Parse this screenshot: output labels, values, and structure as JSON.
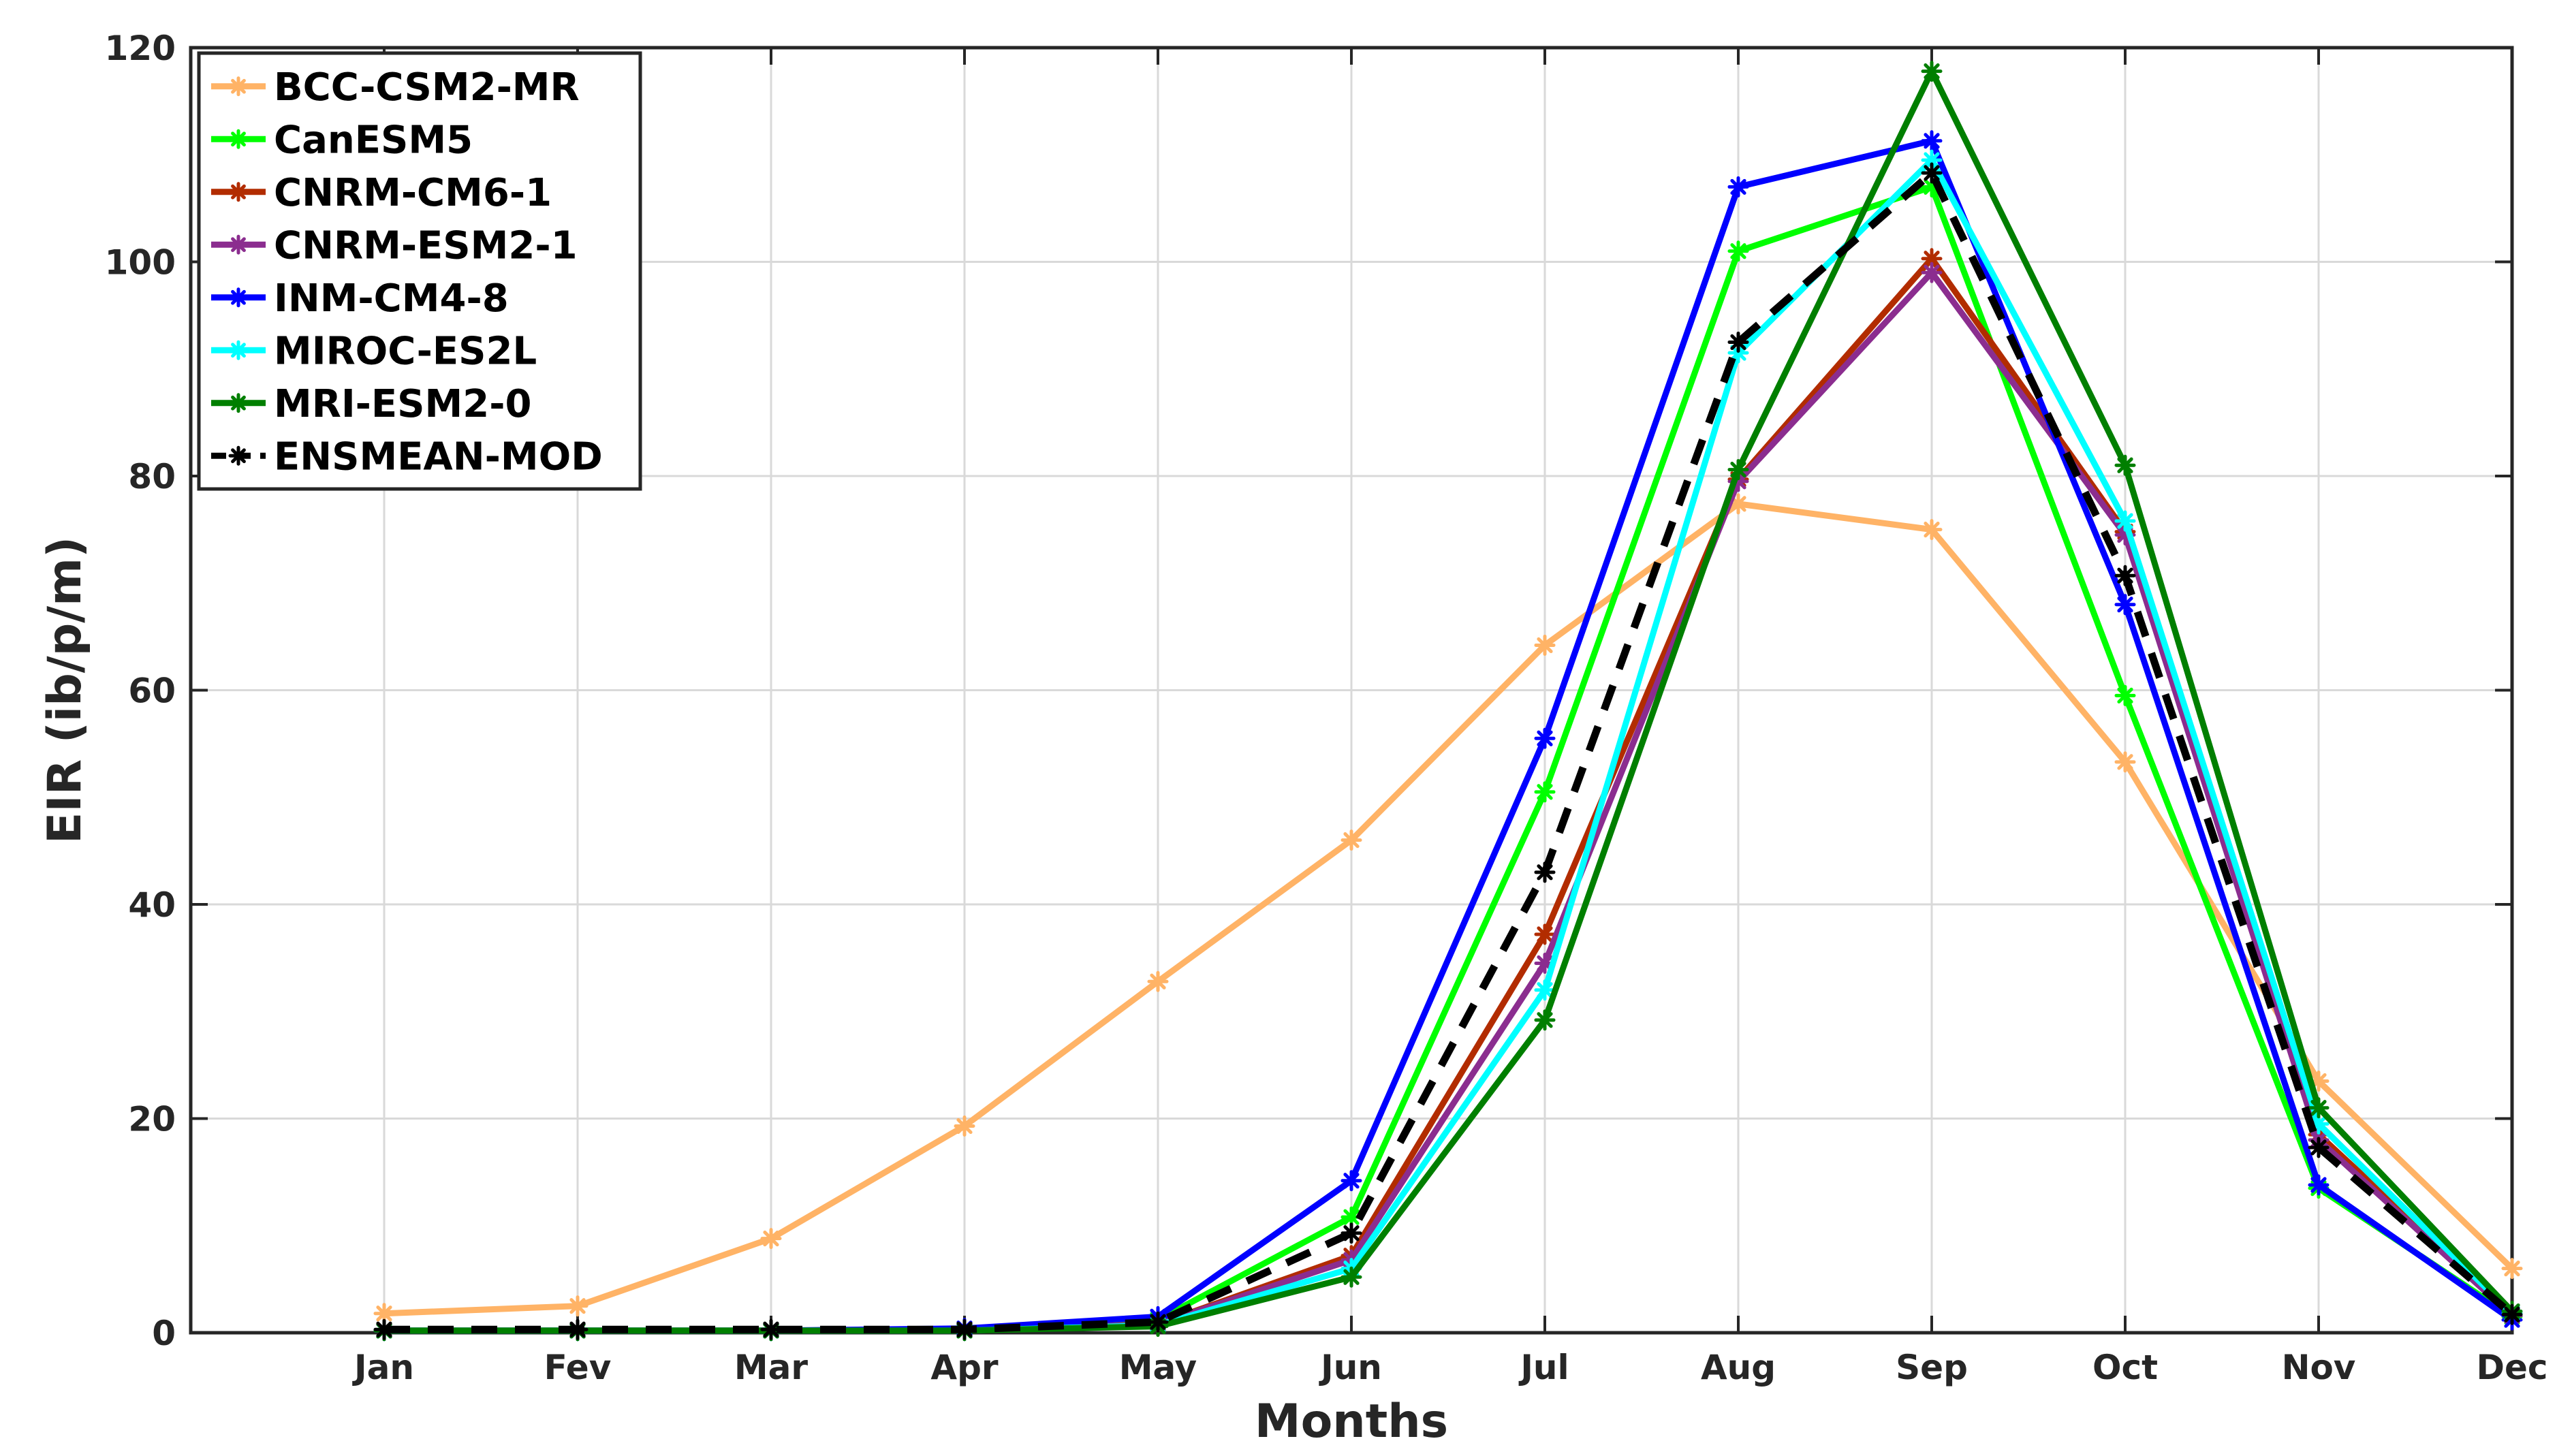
{
  "chart_data": {
    "type": "line",
    "title": "",
    "xlabel": "Months",
    "ylabel": "EIR (ib/p/m)",
    "categories": [
      "Jan",
      "Fev",
      "Mar",
      "Apr",
      "May",
      "Jun",
      "Jul",
      "Aug",
      "Sep",
      "Oct",
      "Nov",
      "Dec"
    ],
    "ylim": [
      0,
      120
    ],
    "yticks": [
      0,
      20,
      40,
      60,
      80,
      100,
      120
    ],
    "xlim_months": [
      0,
      12
    ],
    "grid": true,
    "legend_position": "top-left",
    "series": [
      {
        "name": "BCC-CSM2-MR",
        "color": "#FFB366",
        "dashed": false,
        "values": [
          1.8,
          2.5,
          8.8,
          19.3,
          32.8,
          46.0,
          64.2,
          77.4,
          75.0,
          53.3,
          23.5,
          6.0
        ]
      },
      {
        "name": "CanESM5",
        "color": "#00FF00",
        "dashed": false,
        "values": [
          0.2,
          0.2,
          0.2,
          0.3,
          1.2,
          10.8,
          50.5,
          101.0,
          107.0,
          59.5,
          13.5,
          1.5
        ]
      },
      {
        "name": "CNRM-CM6-1",
        "color": "#B22C00",
        "dashed": false,
        "values": [
          0.2,
          0.2,
          0.2,
          0.2,
          0.8,
          7.2,
          37.2,
          79.7,
          100.3,
          74.8,
          18.5,
          1.8
        ]
      },
      {
        "name": "CNRM-ESM2-1",
        "color": "#8B2D8F",
        "dashed": false,
        "values": [
          0.2,
          0.2,
          0.2,
          0.2,
          0.8,
          6.8,
          34.5,
          79.5,
          99.0,
          74.5,
          18.0,
          1.6
        ]
      },
      {
        "name": "INM-CM4-8",
        "color": "#0000FF",
        "dashed": false,
        "values": [
          0.2,
          0.2,
          0.2,
          0.4,
          1.5,
          14.2,
          55.5,
          107.0,
          111.3,
          68.0,
          13.8,
          1.2
        ]
      },
      {
        "name": "MIROC-ES2L",
        "color": "#00FFFF",
        "dashed": false,
        "values": [
          0.2,
          0.2,
          0.2,
          0.2,
          0.7,
          6.0,
          32.0,
          91.5,
          109.5,
          75.8,
          19.5,
          1.8
        ]
      },
      {
        "name": "MRI-ESM2-0",
        "color": "#007F00",
        "dashed": false,
        "values": [
          0.2,
          0.2,
          0.2,
          0.2,
          0.6,
          5.2,
          29.2,
          80.6,
          117.8,
          81.0,
          21.0,
          2.0
        ]
      },
      {
        "name": "ENSMEAN-MOD",
        "color": "#000000",
        "dashed": true,
        "values": [
          0.3,
          0.3,
          0.3,
          0.3,
          1.0,
          9.3,
          43.0,
          92.5,
          108.3,
          70.7,
          17.3,
          1.7
        ]
      }
    ]
  }
}
